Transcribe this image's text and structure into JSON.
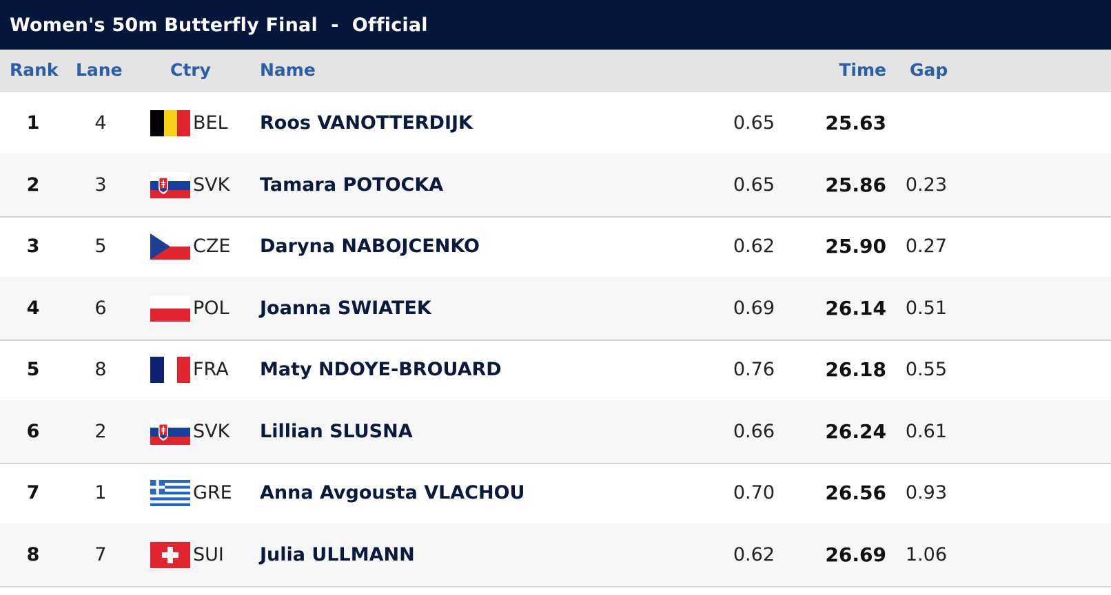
{
  "title": "Women's 50m Butterfly Final  -  Official",
  "columns": {
    "rank": "Rank",
    "lane": "Lane",
    "ctry": "Ctry",
    "name": "Name",
    "time": "Time",
    "gap": "Gap"
  },
  "results": [
    {
      "rank": "1",
      "lane": "4",
      "ctry": "BEL",
      "flag": "belgium-flag",
      "name": "Roos VANOTTERDIJK",
      "reaction": "0.65",
      "time": "25.63",
      "gap": ""
    },
    {
      "rank": "2",
      "lane": "3",
      "ctry": "SVK",
      "flag": "slovakia-flag",
      "name": "Tamara POTOCKA",
      "reaction": "0.65",
      "time": "25.86",
      "gap": "0.23"
    },
    {
      "rank": "3",
      "lane": "5",
      "ctry": "CZE",
      "flag": "czechia-flag",
      "name": "Daryna NABOJCENKO",
      "reaction": "0.62",
      "time": "25.90",
      "gap": "0.27"
    },
    {
      "rank": "4",
      "lane": "6",
      "ctry": "POL",
      "flag": "poland-flag",
      "name": "Joanna SWIATEK",
      "reaction": "0.69",
      "time": "26.14",
      "gap": "0.51"
    },
    {
      "rank": "5",
      "lane": "8",
      "ctry": "FRA",
      "flag": "france-flag",
      "name": "Maty NDOYE-BROUARD",
      "reaction": "0.76",
      "time": "26.18",
      "gap": "0.55"
    },
    {
      "rank": "6",
      "lane": "2",
      "ctry": "SVK",
      "flag": "slovakia-flag",
      "name": "Lillian SLUSNA",
      "reaction": "0.66",
      "time": "26.24",
      "gap": "0.61"
    },
    {
      "rank": "7",
      "lane": "1",
      "ctry": "GRE",
      "flag": "greece-flag",
      "name": "Anna Avgousta VLACHOU",
      "reaction": "0.70",
      "time": "26.56",
      "gap": "0.93"
    },
    {
      "rank": "8",
      "lane": "7",
      "ctry": "SUI",
      "flag": "switzerland-flag",
      "name": "Julia ULLMANN",
      "reaction": "0.62",
      "time": "26.69",
      "gap": "1.06"
    }
  ],
  "colors": {
    "title_bg": "#04173b",
    "header_bg": "#e4e4e4",
    "header_text": "#2a5ea9",
    "name_text": "#0a1a3d"
  }
}
